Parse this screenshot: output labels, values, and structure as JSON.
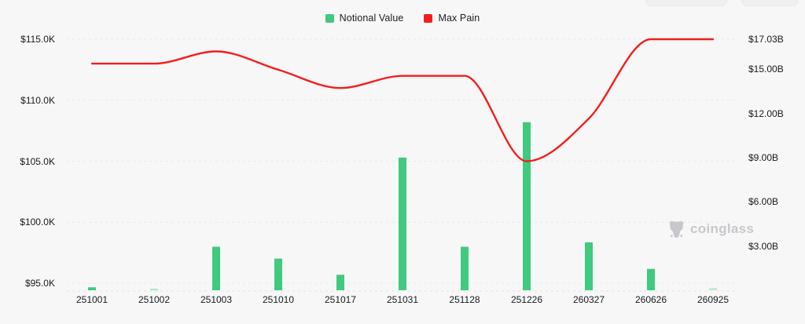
{
  "legend": [
    {
      "label": "Notional Value",
      "color": "#3fca80"
    },
    {
      "label": "Max Pain",
      "color": "#f51d1d"
    }
  ],
  "watermark": {
    "text": "coinglass"
  },
  "colors": {
    "background": "#f7f7f8",
    "grid": "#e9e9ec",
    "baseline": "#e3e3e6",
    "bar": "#3fca80",
    "line": "#f51d1d",
    "axis_text": "#17191d",
    "watermark": "#c6c8cb"
  },
  "chart_data": {
    "type": "bar",
    "title": "",
    "categories": [
      "251001",
      "251002",
      "251003",
      "251010",
      "251017",
      "251031",
      "251128",
      "251226",
      "260327",
      "260626",
      "260925"
    ],
    "series": [
      {
        "name": "Notional Value",
        "type": "bar",
        "axis": "right",
        "unit": "$B",
        "values": [
          0.2,
          0.1,
          2.95,
          2.15,
          1.05,
          9.0,
          2.95,
          11.4,
          3.25,
          1.45,
          0.15
        ],
        "opacity": [
          1,
          0.45,
          1,
          1,
          1,
          1,
          1,
          1,
          1,
          1,
          0.3
        ]
      },
      {
        "name": "Max Pain",
        "type": "line",
        "axis": "left",
        "unit": "$K",
        "values": [
          113.0,
          113.0,
          114.0,
          112.5,
          111.0,
          112.0,
          112.0,
          105.0,
          108.5,
          115.0,
          115.0
        ]
      }
    ],
    "left_axis": {
      "ticks": [
        "$115.0K",
        "$110.0K",
        "$105.0K",
        "$100.0K",
        "$95.0K"
      ],
      "tick_values": [
        115,
        110,
        105,
        100,
        95
      ],
      "range": [
        94.36,
        115
      ]
    },
    "right_axis": {
      "ticks": [
        "$17.03B",
        "$15.00B",
        "$12.00B",
        "$9.00B",
        "$6.00B",
        "$3.00B"
      ],
      "tick_values": [
        17.03,
        15,
        12,
        9,
        6,
        3
      ],
      "range": [
        0,
        17.03
      ]
    },
    "grid": "dashed-horizontal",
    "legend_position": "top-center"
  }
}
